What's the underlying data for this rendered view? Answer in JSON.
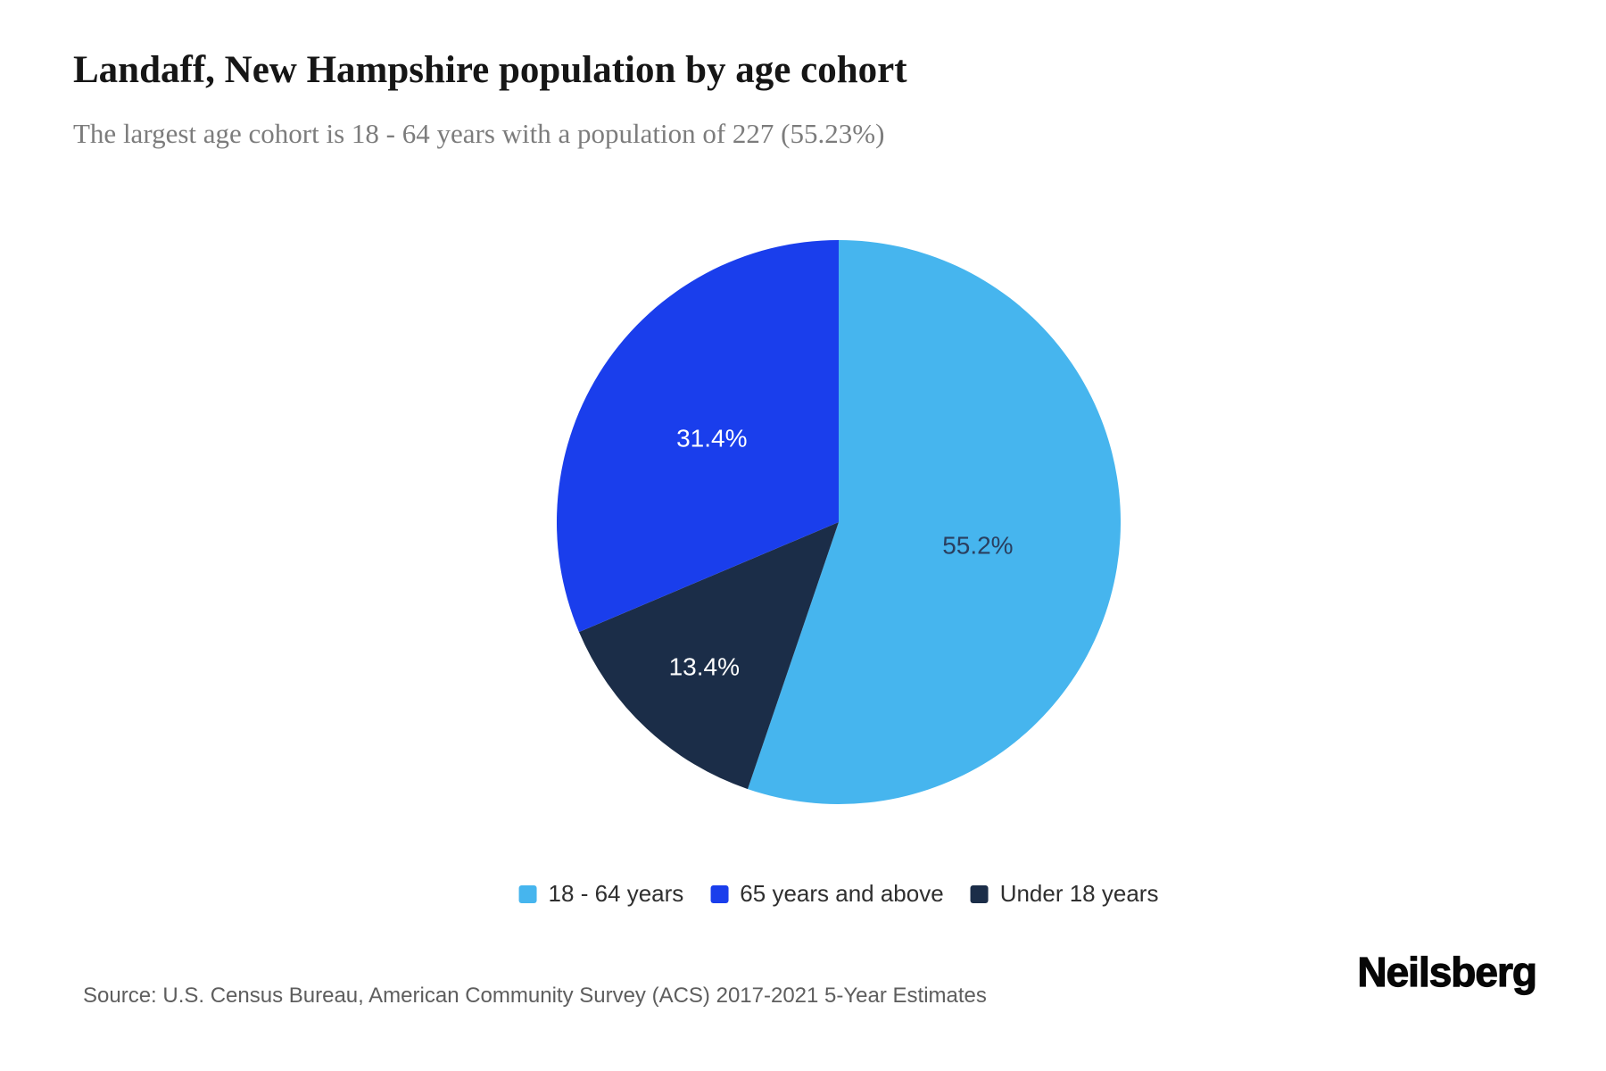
{
  "header": {
    "title": "Landaff, New Hampshire population by age cohort",
    "subtitle": "The largest age cohort is 18 - 64 years with a population of 227 (55.23%)"
  },
  "chart_data": {
    "type": "pie",
    "title": "Landaff, New Hampshire population by age cohort",
    "subtitle": "The largest age cohort is 18 - 64 years with a population of 227 (55.23%)",
    "largest_cohort": {
      "name": "18 - 64 years",
      "population": 227,
      "percent": 55.23
    },
    "direction": "clockwise",
    "start_angle_deg": 0,
    "legend_position": "bottom-center",
    "slices": [
      {
        "label": "18 - 64 years",
        "value": 55.23,
        "display_label": "55.2%",
        "color": "#46b5ee",
        "label_color": "#2a3f5f",
        "label_radius": 0.5
      },
      {
        "label": "Under 18 years",
        "value": 13.4,
        "display_label": "13.4%",
        "color": "#1b2d48",
        "label_color": "#ffffff",
        "label_radius": 0.7
      },
      {
        "label": "65 years and above",
        "value": 31.37,
        "display_label": "31.4%",
        "color": "#1a3eec",
        "label_color": "#ffffff",
        "label_radius": 0.54
      }
    ],
    "legend": [
      {
        "label": "18 - 64 years",
        "color": "#46b5ee"
      },
      {
        "label": "65 years and above",
        "color": "#1a3eec"
      },
      {
        "label": "Under 18 years",
        "color": "#1b2d48"
      }
    ]
  },
  "footer": {
    "source": "Source: U.S. Census Bureau, American Community Survey (ACS) 2017-2021 5-Year Estimates",
    "brand": "Neilsberg"
  }
}
